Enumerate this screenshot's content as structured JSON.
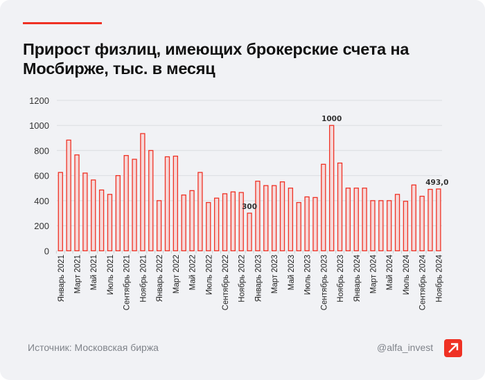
{
  "title": "Прирост физлиц, имеющих брокерские счета на Мосбирже, тыс. в месяц",
  "footer": {
    "source": "Источник: Московская биржа",
    "handle": "@alfa_invest",
    "logo_icon": "alfa-arrow-logo"
  },
  "colors": {
    "accent": "#ef3124",
    "bar_fill": "#f6d9d9",
    "bar_stroke": "#ef3124"
  },
  "chart_data": {
    "type": "bar",
    "title": "Прирост физлиц, имеющих брокерские счета на Мосбирже, тыс. в месяц",
    "xlabel": "",
    "ylabel": "",
    "ylim": [
      0,
      1200
    ],
    "yticks": [
      0,
      200,
      400,
      600,
      800,
      1000,
      1200
    ],
    "grid": true,
    "categories": [
      "Январь 2021",
      "Февраль 2021",
      "Март 2021",
      "Апрель 2021",
      "Май 2021",
      "Июнь 2021",
      "Июль 2021",
      "Август 2021",
      "Сентябрь 2021",
      "Октябрь 2021",
      "Ноябрь 2021",
      "Декабрь 2021",
      "Январь 2022",
      "Февраль 2022",
      "Март 2022",
      "Апрель 2022",
      "Май 2022",
      "Июнь 2022",
      "Июль 2022",
      "Август 2022",
      "Сентябрь 2022",
      "Октябрь 2022",
      "Ноябрь 2022",
      "Декабрь 2022",
      "Январь 2023",
      "Февраль 2023",
      "Март 2023",
      "Апрель 2023",
      "Май 2023",
      "Июнь 2023",
      "Июль 2023",
      "Август 2023",
      "Сентябрь 2023",
      "Октябрь 2023",
      "Ноябрь 2023",
      "Декабрь 2023",
      "Январь 2024",
      "Февраль 2024",
      "Март 2024",
      "Апрель 2024",
      "Май 2024",
      "Июнь 2024",
      "Июль 2024",
      "Август 2024",
      "Сентябрь 2024",
      "Октябрь 2024",
      "Ноябрь 2024"
    ],
    "tick_labels": [
      "Январь 2021",
      "Март 2021",
      "Май 2021",
      "Июль 2021",
      "Сентябрь 2021",
      "Ноябрь 2021",
      "Январь 2022",
      "Март 2022",
      "Май 2022",
      "Июль 2022",
      "Сентябрь 2022",
      "Ноябрь 2022",
      "Январь 2023",
      "Март 2023",
      "Май 2023",
      "Июль 2023",
      "Сентябрь 2023",
      "Ноябрь 2023",
      "Январь 2024",
      "Март 2024",
      "Май 2024",
      "Июль 2024",
      "Сентябрь 2024",
      "Ноябрь 2024"
    ],
    "values": [
      625,
      883,
      765,
      620,
      565,
      485,
      450,
      600,
      760,
      730,
      935,
      800,
      400,
      750,
      755,
      445,
      480,
      625,
      385,
      420,
      455,
      470,
      465,
      300,
      555,
      520,
      520,
      550,
      500,
      385,
      430,
      425,
      690,
      1000,
      700,
      500,
      500,
      500,
      400,
      400,
      400,
      450,
      395,
      525,
      435,
      490,
      493
    ],
    "data_labels": [
      {
        "index": 23,
        "text": "300"
      },
      {
        "index": 33,
        "text": "1000"
      },
      {
        "index": 46,
        "text": "493,0"
      }
    ]
  }
}
